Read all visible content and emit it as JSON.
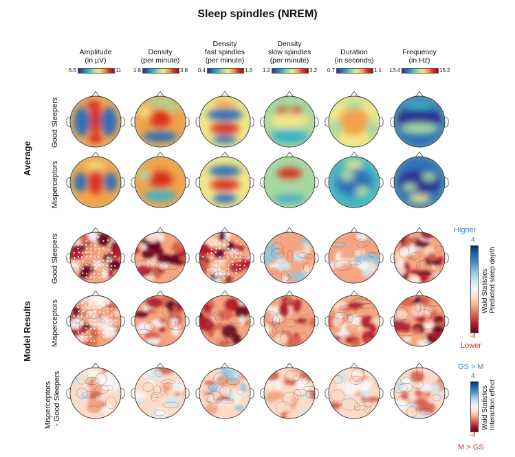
{
  "title": "Sleep spindles (NREM)",
  "columns": [
    {
      "line1": "Amplitude",
      "line2": "(in µV)",
      "line3": "",
      "min": "6.5",
      "max": "11",
      "scale": "jet"
    },
    {
      "line1": "Density",
      "line2": "(per minute)",
      "line3": "",
      "min": "1.8",
      "max": "3.8",
      "scale": "jet"
    },
    {
      "line1": "Density",
      "line2": "fast spindles",
      "line3": "(per minute)",
      "min": "0.4",
      "max": "1.6",
      "scale": "jet"
    },
    {
      "line1": "Density",
      "line2": "slow spindles",
      "line3": "(per minute)",
      "min": "1.2",
      "max": "3.2",
      "scale": "jet"
    },
    {
      "line1": "Duration",
      "line2": "(in seconds)",
      "line3": "",
      "min": "0.7",
      "max": "1.1",
      "scale": "jet"
    },
    {
      "line1": "Frequency",
      "line2": "(in Hz)",
      "line3": "",
      "min": "13.4",
      "max": "15.2",
      "scale": "jet"
    }
  ],
  "groups": {
    "average": "Average",
    "model": "Model Results"
  },
  "rows": [
    {
      "label": "Good Sleepers",
      "kind": "avg"
    },
    {
      "label": "Misperceptors",
      "kind": "avg"
    },
    {
      "label": "Good Sleepers",
      "kind": "wald"
    },
    {
      "label": "Misperceptors",
      "kind": "wald"
    },
    {
      "label_line1": "Misperceptors",
      "label_line2": "- Good Sleepers",
      "kind": "diff"
    }
  ],
  "legend_depth": {
    "top_label": "Higher",
    "top_value": "4",
    "bottom_value": "-4",
    "bottom_label": "Lower",
    "title_line1": "Wald Statistics",
    "title_line2": "Predicted sleep depth"
  },
  "legend_interaction": {
    "top_label": "GS > M",
    "top_value": "4",
    "bottom_value": "-4",
    "bottom_label": "M > GS",
    "title_line1": "Wald Statistics",
    "title_line2": "Interaction effect"
  },
  "colors": {
    "jet": [
      "#2b2d8f",
      "#2f6fb6",
      "#3bb3c3",
      "#a7d8a0",
      "#f4e88a",
      "#f2a24a",
      "#d7301f",
      "#8c1414"
    ],
    "rdbu": [
      "#67001f",
      "#b2182b",
      "#d6604d",
      "#f4a582",
      "#fddbc7",
      "#f7f7f7",
      "#d1e5f0",
      "#92c5de",
      "#4393c3",
      "#2166ac",
      "#053061"
    ]
  }
}
